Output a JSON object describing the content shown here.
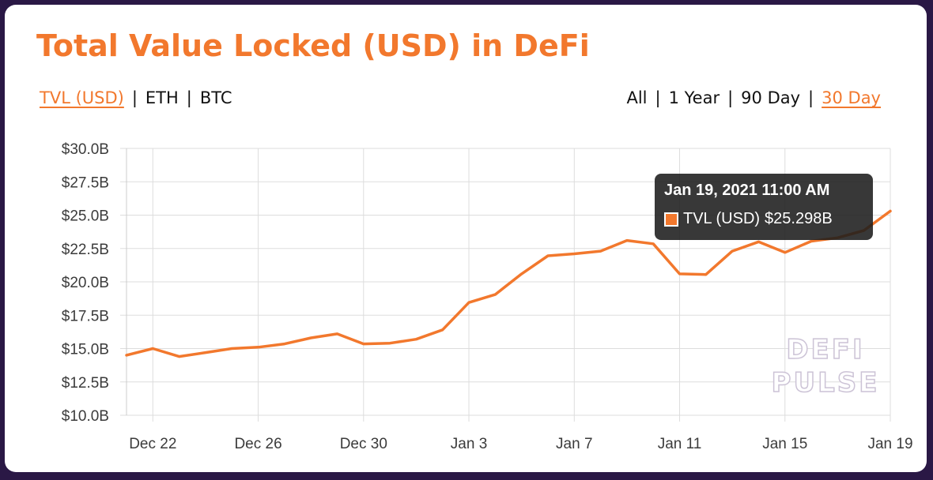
{
  "title": "Total Value Locked (USD) in DeFi",
  "metric_toggle": [
    {
      "label": "TVL (USD)",
      "active": true
    },
    {
      "label": "ETH",
      "active": false
    },
    {
      "label": "BTC",
      "active": false
    }
  ],
  "range_toggle": [
    {
      "label": "All",
      "active": false
    },
    {
      "label": "1 Year",
      "active": false
    },
    {
      "label": "90 Day",
      "active": false
    },
    {
      "label": "30 Day",
      "active": true
    }
  ],
  "separator": "|",
  "tooltip": {
    "title": "Jan 19, 2021 11:00 AM",
    "series_label": "TVL (USD)",
    "value": "$25.298B"
  },
  "watermark": {
    "line1": "DEFI",
    "line2": "PULSE"
  },
  "colors": {
    "accent": "#f2782d",
    "grid": "#dddddd",
    "background": "#2a1845"
  },
  "chart_data": {
    "type": "line",
    "title": "Total Value Locked (USD) in DeFi",
    "xlabel": "",
    "ylabel": "",
    "x_ticks": [
      "Dec 22",
      "Dec 26",
      "Dec 30",
      "Jan 3",
      "Jan 7",
      "Jan 11",
      "Jan 15",
      "Jan 19"
    ],
    "y_ticks": [
      "$30.0B",
      "$27.5B",
      "$25.0B",
      "$22.5B",
      "$20.0B",
      "$17.5B",
      "$15.0B",
      "$12.5B",
      "$10.0B"
    ],
    "ylim": [
      10.0,
      30.0
    ],
    "xlim": [
      "2020-12-21",
      "2021-01-19"
    ],
    "grid": true,
    "legend": "none",
    "series": [
      {
        "name": "TVL (USD)",
        "x": [
          "2020-12-21",
          "2020-12-22",
          "2020-12-23",
          "2020-12-24",
          "2020-12-25",
          "2020-12-26",
          "2020-12-27",
          "2020-12-28",
          "2020-12-29",
          "2020-12-30",
          "2020-12-31",
          "2021-01-01",
          "2021-01-02",
          "2021-01-03",
          "2021-01-04",
          "2021-01-05",
          "2021-01-06",
          "2021-01-07",
          "2021-01-08",
          "2021-01-09",
          "2021-01-10",
          "2021-01-11",
          "2021-01-12",
          "2021-01-13",
          "2021-01-14",
          "2021-01-15",
          "2021-01-16",
          "2021-01-17",
          "2021-01-18",
          "2021-01-19"
        ],
        "values": [
          14.5,
          15.0,
          14.4,
          14.7,
          15.0,
          15.1,
          15.35,
          15.8,
          16.1,
          15.35,
          15.4,
          15.7,
          16.4,
          18.45,
          19.05,
          20.6,
          21.95,
          22.1,
          22.3,
          23.1,
          22.85,
          20.6,
          20.55,
          22.3,
          23.0,
          22.2,
          23.05,
          23.3,
          23.85,
          25.3
        ]
      }
    ]
  }
}
